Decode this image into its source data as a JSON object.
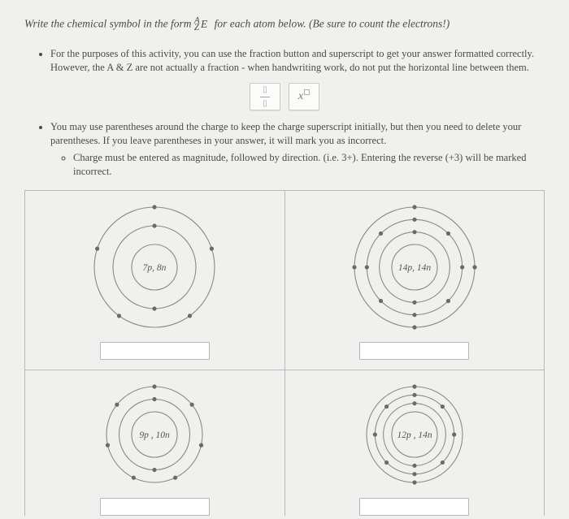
{
  "title_pre": "Write the chemical symbol in the form ",
  "title_post": " for each atom below. (Be sure to count the electrons!)",
  "notation_upper": "A",
  "notation_lower": "Z",
  "notation_sym": "E",
  "bullets": {
    "b1": "For the purposes of this activity, you can use the fraction button and superscript to get your answer formatted correctly. However, the A & Z are not actually a fraction - when handwriting work, do not put the horizontal line between them.",
    "b2": "You may use parentheses around the charge to keep the charge superscript initially, but then you need to delete your parentheses. If you leave parentheses in your answer, it will mark you as incorrect.",
    "b2sub": "Charge must be entered as magnitude, followed by direction. (i.e. 3+). Entering the reverse (+3) will be marked incorrect."
  },
  "toolbar": {
    "frac_top": "□",
    "frac_bot": "□",
    "sup_x": "x"
  },
  "atoms": [
    {
      "label": "7p, 8n",
      "rings": [
        2,
        5
      ],
      "diameter": 160
    },
    {
      "label": "14p, 14n",
      "rings": [
        2,
        8,
        4
      ],
      "diameter": 160
    },
    {
      "label": "9p , 10n",
      "rings": [
        2,
        7
      ],
      "diameter": 160
    },
    {
      "label": "12p , 14n",
      "rings": [
        2,
        8,
        2
      ],
      "diameter": 160
    }
  ],
  "colors": {
    "ring": "#8a8a8a",
    "electron": "#6a6a6a",
    "bg": "#f0f0ee",
    "border": "#bababa"
  }
}
